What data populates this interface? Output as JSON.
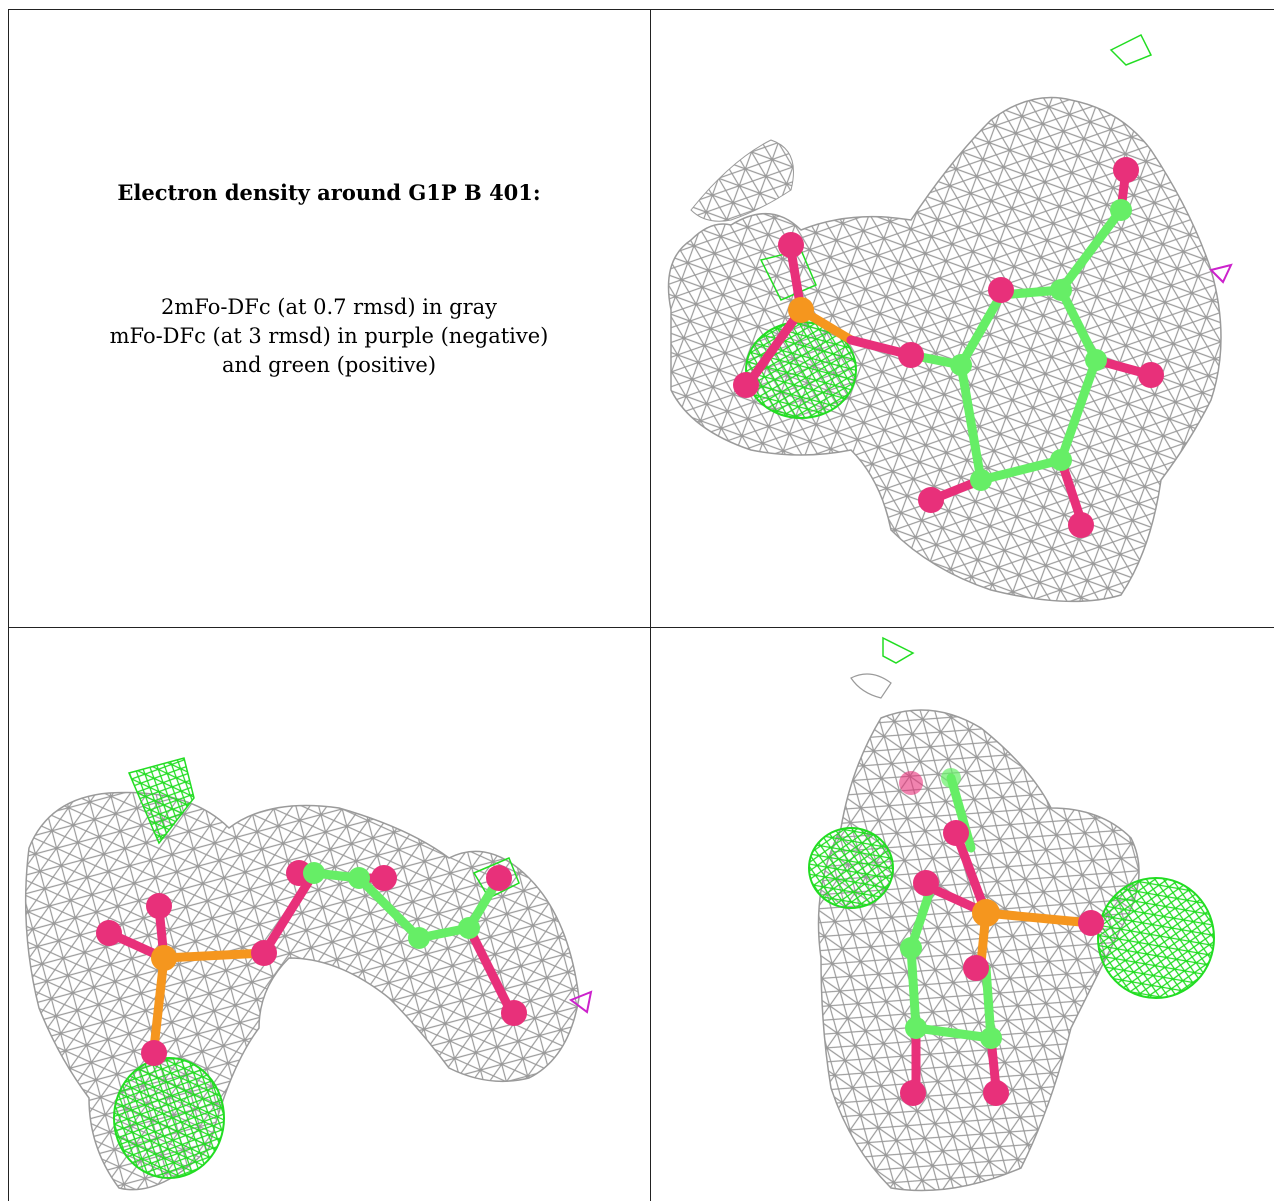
{
  "caption": {
    "title": "Electron density around G1P B 401:",
    "line1": "2mFo-DFc (at 0.7 rmsd) in gray",
    "line2": "mFo-DFc (at 3 rmsd) in purple (negative)",
    "line3": "and green (positive)"
  },
  "colors": {
    "density_2fofc": "#9a9a9a",
    "density_positive": "#22dd22",
    "density_negative": "#cc22cc",
    "carbon": "#66ee66",
    "oxygen": "#e8307a",
    "phosphorus": "#f5961e"
  },
  "panels": [
    "top-right-view",
    "bottom-left-view",
    "bottom-right-view"
  ]
}
